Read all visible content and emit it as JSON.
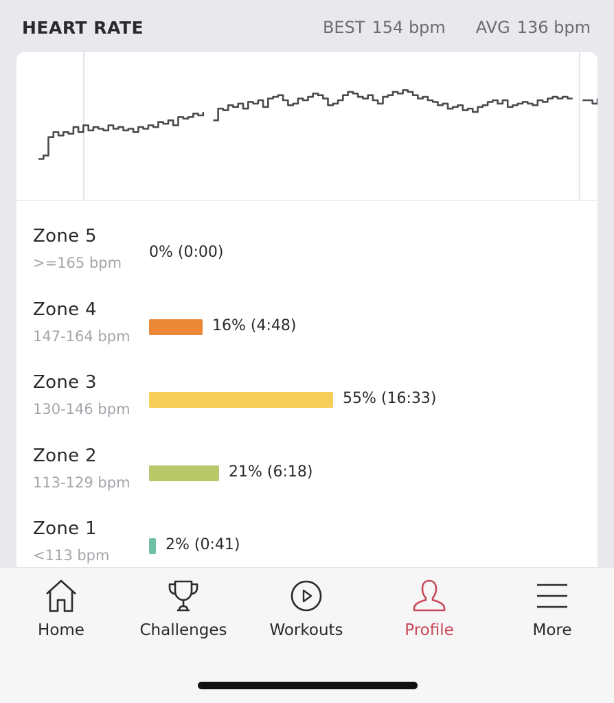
{
  "header": {
    "title": "HEART RATE",
    "best_label": "BEST",
    "best_value": "154 bpm",
    "avg_label": "AVG",
    "avg_value": "136 bpm"
  },
  "chart_data": {
    "type": "line",
    "title": "",
    "series": [
      {
        "values": [
          108,
          110,
          121,
          124,
          122,
          124,
          123,
          127,
          124,
          128,
          125,
          127,
          126,
          125,
          128,
          126,
          127,
          125,
          126,
          124,
          127,
          126,
          128,
          127,
          130,
          129,
          131,
          128,
          133,
          132,
          133,
          135,
          134,
          136,
          null,
          131,
          138,
          137,
          140,
          139,
          141,
          138,
          142,
          141,
          143,
          139,
          144,
          145,
          146,
          143,
          140,
          141,
          144,
          143,
          145,
          147,
          146,
          144,
          140,
          141,
          143,
          146,
          148,
          147,
          145,
          144,
          146,
          143,
          141,
          145,
          146,
          148,
          147,
          149,
          148,
          146,
          144,
          145,
          143,
          142,
          140,
          141,
          138,
          139,
          140,
          137,
          138,
          136,
          139,
          140,
          142,
          143,
          141,
          143,
          139,
          140,
          141,
          142,
          141,
          140,
          143,
          142,
          144,
          145,
          144,
          145,
          144,
          144,
          null,
          143,
          143,
          141,
          144
        ]
      }
    ]
  },
  "zones": [
    {
      "name": "Zone 5",
      "range": ">=165 bpm",
      "percent": 0,
      "value": "0% (0:00)",
      "color": "#e8833a"
    },
    {
      "name": "Zone 4",
      "range": "147-164 bpm",
      "percent": 16,
      "value": "16% (4:48)",
      "color": "#ea8836"
    },
    {
      "name": "Zone 3",
      "range": "130-146 bpm",
      "percent": 55,
      "value": "55% (16:33)",
      "color": "#f5cd57"
    },
    {
      "name": "Zone 2",
      "range": "113-129 bpm",
      "percent": 21,
      "value": "21% (6:18)",
      "color": "#b9c96a"
    },
    {
      "name": "Zone 1",
      "range": "<113 bpm",
      "percent": 2,
      "value": "2% (0:41)",
      "color": "#6fc1a4"
    }
  ],
  "tabs": [
    {
      "label": "Home",
      "icon": "home-icon",
      "active": false
    },
    {
      "label": "Challenges",
      "icon": "trophy-icon",
      "active": false
    },
    {
      "label": "Workouts",
      "icon": "play-circle-icon",
      "active": false
    },
    {
      "label": "Profile",
      "icon": "profile-icon",
      "active": true
    },
    {
      "label": "More",
      "icon": "menu-icon",
      "active": false
    }
  ],
  "colors": {
    "accent": "#c8485a",
    "chart_line": "#4a4a4f"
  }
}
